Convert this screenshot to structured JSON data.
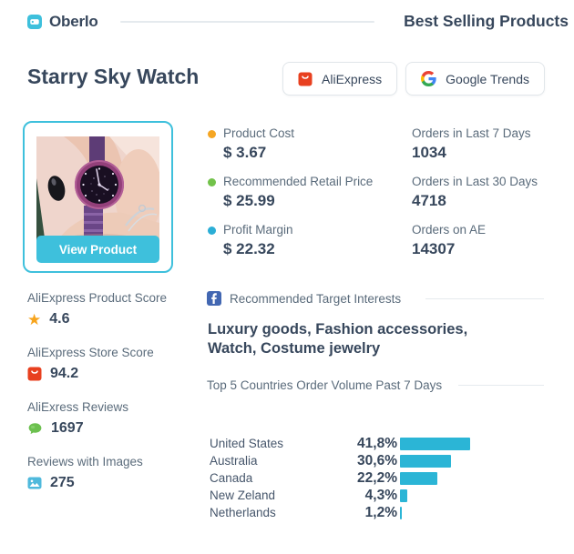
{
  "header": {
    "brand": "Oberlo",
    "title": "Best Selling Products"
  },
  "product": {
    "name": "Starry Sky Watch",
    "buttons": [
      {
        "label": "AliExpress"
      },
      {
        "label": "Google Trends"
      }
    ],
    "view_button": "View Product"
  },
  "pricing": [
    {
      "label": "Product Cost",
      "value": "$ 3.67"
    },
    {
      "label": "Recommended Retail Price",
      "value": "$ 25.99"
    },
    {
      "label": "Profit Margin",
      "value": "$ 22.32"
    }
  ],
  "orders": [
    {
      "label": "Orders in Last 7 Days",
      "value": "1034"
    },
    {
      "label": "Orders in Last 30 Days",
      "value": "4718"
    },
    {
      "label": "Orders on AE",
      "value": "14307"
    }
  ],
  "scores": [
    {
      "label": "AliExpress Product Score",
      "value": "4.6",
      "icon": "star-icon"
    },
    {
      "label": "AliExpress Store Score",
      "value": "94.2",
      "icon": "aliexpress-icon"
    },
    {
      "label": "AliExress Reviews",
      "value": "1697",
      "icon": "chat-icon"
    },
    {
      "label": "Reviews with Images",
      "value": "275",
      "icon": "image-icon"
    }
  ],
  "interests": {
    "heading": "Recommended Target Interests",
    "text": "Luxury goods, Fashion accessories, Watch, Costume jewelry"
  },
  "chart_data": {
    "type": "bar",
    "orientation": "horizontal",
    "title": "Top 5 Countries Order Volume Past 7 Days",
    "categories": [
      "United States",
      "Australia",
      "Canada",
      "New Zeland",
      "Netherlands"
    ],
    "values": [
      41.8,
      30.6,
      22.2,
      4.3,
      1.2
    ],
    "value_labels": [
      "41,8%",
      "30,6%",
      "22,2%",
      "4,3%",
      "1,2%"
    ],
    "bar_color": "#2BB5D6",
    "xlim": [
      0,
      45
    ],
    "grid": false,
    "legend": false
  },
  "colors": {
    "accent": "#3EC0DC",
    "bar": "#2BB5D6",
    "navy": "#37475C",
    "label": "#5A6B7B",
    "line": "#E5EAEE",
    "border": "#E1E6EA",
    "dotOrange": "#F5A623",
    "dotGreen": "#72C24A",
    "dotBlue": "#2BAED6",
    "facebook": "#4267B2",
    "star": "#F7A41C",
    "aeRed": "#E8401F",
    "chatGreen": "#6CC04F",
    "imgBlue": "#4FB9DC"
  }
}
